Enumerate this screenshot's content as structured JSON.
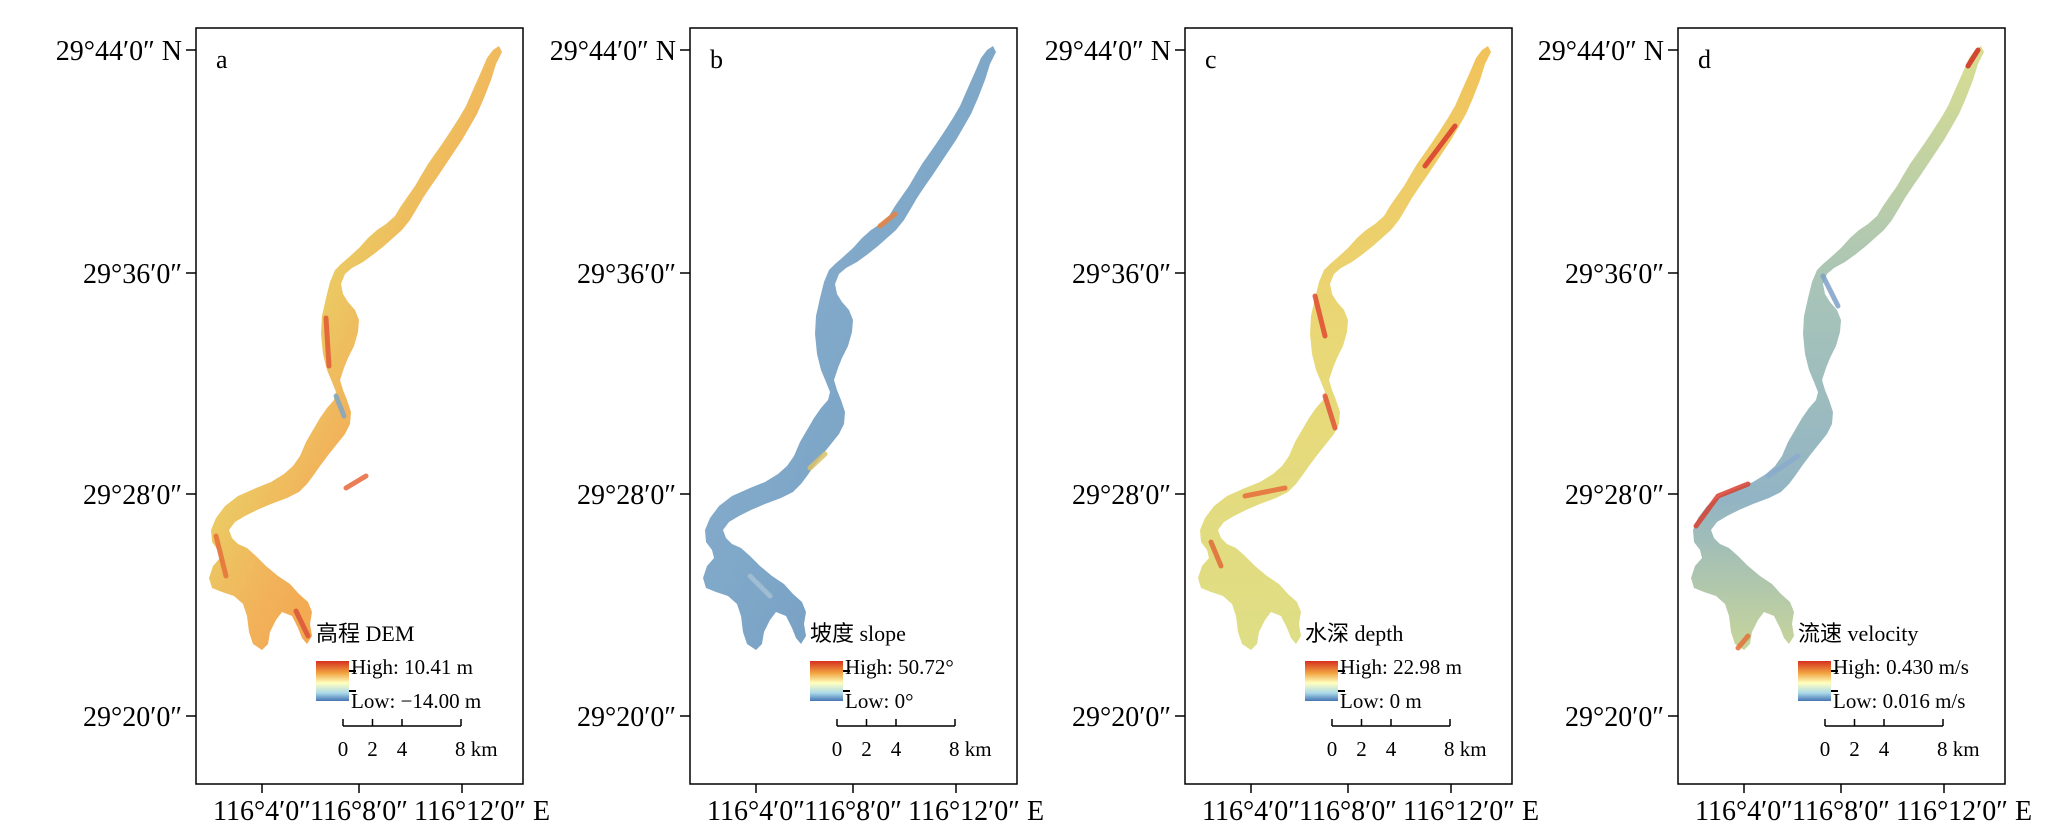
{
  "panels": [
    {
      "id": "a",
      "letter": "a",
      "legend_title": "高程 DEM",
      "high_label": "High: 10.41 m",
      "low_label": "Low: −14.00 m",
      "high_value": 10.41,
      "low_value": -14.0,
      "unit": "m",
      "theme": "dem"
    },
    {
      "id": "b",
      "letter": "b",
      "legend_title": "坡度 slope",
      "high_label": "High: 50.72°",
      "low_label": "Low: 0°",
      "high_value": 50.72,
      "low_value": 0,
      "unit": "°",
      "theme": "slope"
    },
    {
      "id": "c",
      "letter": "c",
      "legend_title": "水深 depth",
      "high_label": "High: 22.98 m",
      "low_label": "Low: 0 m",
      "high_value": 22.98,
      "low_value": 0,
      "unit": "m",
      "theme": "depth"
    },
    {
      "id": "d",
      "letter": "d",
      "legend_title": "流速 velocity",
      "high_label": "High: 0.430 m/s",
      "low_label": "Low: 0.016 m/s",
      "high_value": 0.43,
      "low_value": 0.016,
      "unit": "m/s",
      "theme": "velocity"
    }
  ],
  "lat_ticks": [
    "29°44′0″ N",
    "29°36′0″",
    "29°28′0″",
    "29°20′0″"
  ],
  "lon_ticks": [
    "116°4′0″",
    "116°8′0″",
    "116°12′0″ E"
  ],
  "scale_bar": {
    "labels": [
      "0",
      "2",
      "4",
      "8 km"
    ],
    "values_km": [
      0,
      2,
      4,
      8
    ]
  },
  "colors": {
    "high": "#d7301f",
    "mid_high": "#f1a340",
    "mid": "#ffffbf",
    "mid_low": "#abd9e9",
    "low": "#4575b4",
    "frame": "#000000"
  }
}
